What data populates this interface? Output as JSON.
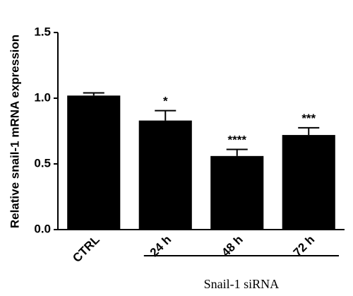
{
  "chart_data": {
    "type": "bar",
    "y_label": "Relative snail-1 mRNA expression",
    "categories": [
      "CTRL",
      "24 h",
      "48 h",
      "72 h"
    ],
    "values": [
      1.02,
      0.83,
      0.56,
      0.72
    ],
    "errors": [
      0.02,
      0.075,
      0.05,
      0.055
    ],
    "annotations": [
      null,
      "*",
      "****",
      "***"
    ],
    "group_label": "Snail-1 siRNA",
    "color": "#000000",
    "ylim": [
      0,
      1.5
    ],
    "yticks": [
      {
        "value": 0,
        "label": "0.0"
      },
      0.5,
      {
        "value": 1,
        "label": "1.0"
      },
      1.5
    ]
  }
}
